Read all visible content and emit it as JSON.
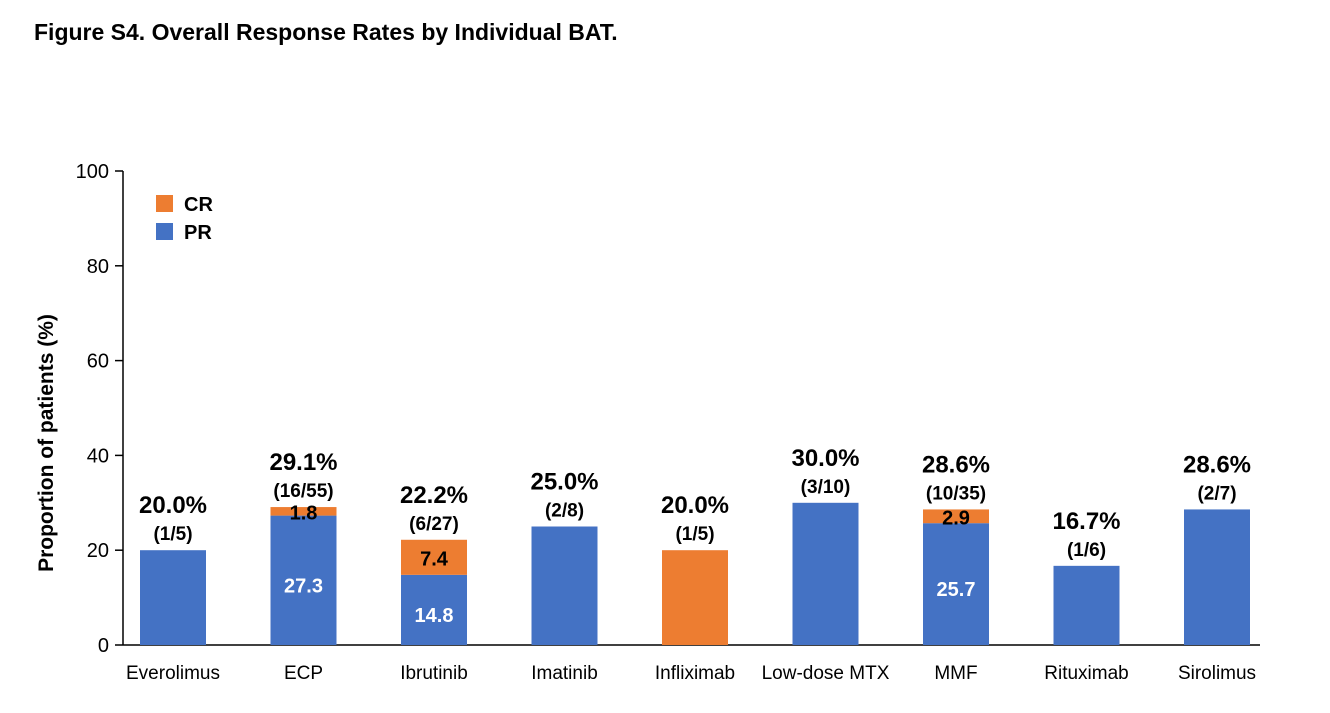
{
  "figure": {
    "title": "Figure S4. Overall Response Rates by Individual BAT."
  },
  "chart_data": {
    "type": "bar",
    "stacked": true,
    "ylabel": "Proportion of patients (%)",
    "ylim": [
      0,
      100
    ],
    "yticks": [
      0,
      20,
      40,
      60,
      80,
      100
    ],
    "categories": [
      "Everolimus",
      "ECP",
      "Ibrutinib",
      "Imatinib",
      "Infliximab",
      "Low-dose MTX",
      "MMF",
      "Rituximab",
      "Sirolimus"
    ],
    "series": [
      {
        "name": "PR",
        "color": "#4472c4",
        "values": [
          20.0,
          27.3,
          14.8,
          25.0,
          0,
          30.0,
          25.7,
          16.7,
          28.6
        ]
      },
      {
        "name": "CR",
        "color": "#ed7d31",
        "values": [
          0,
          1.8,
          7.4,
          0,
          20.0,
          0,
          2.9,
          0,
          0
        ]
      }
    ],
    "segment_labels": {
      "PR": [
        "",
        "27.3",
        "14.8",
        "",
        "",
        "",
        "25.7",
        "",
        ""
      ],
      "CR": [
        "",
        "1.8",
        "7.4",
        "",
        "",
        "",
        "2.9",
        "",
        ""
      ]
    },
    "totals": [
      "20.0%",
      "29.1%",
      "22.2%",
      "25.0%",
      "20.0%",
      "30.0%",
      "28.6%",
      "16.7%",
      "28.6%"
    ],
    "counts": [
      "(1/5)",
      "(16/55)",
      "(6/27)",
      "(2/8)",
      "(1/5)",
      "(3/10)",
      "(10/35)",
      "(1/6)",
      "(2/7)"
    ],
    "legend": [
      {
        "label": "CR",
        "color": "#ed7d31"
      },
      {
        "label": "PR",
        "color": "#4472c4"
      }
    ],
    "legend_position": "top-left",
    "grid": false
  }
}
